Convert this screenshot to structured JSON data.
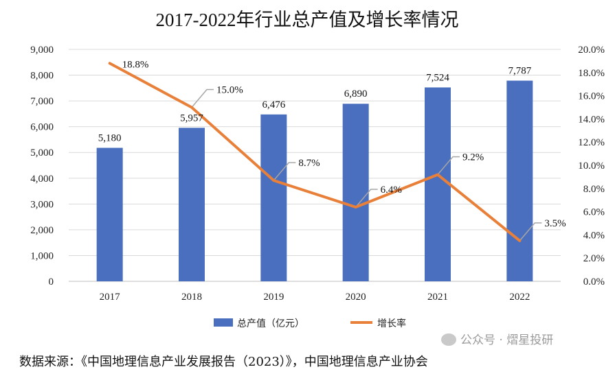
{
  "chart_data": {
    "type": "bar",
    "title": "2017-2022年行业总产值及增长率情况",
    "categories": [
      "2017",
      "2018",
      "2019",
      "2020",
      "2021",
      "2022"
    ],
    "series": [
      {
        "name": "总产值（亿元）",
        "type": "bar",
        "axis": "left",
        "color": "#4a6fbe",
        "values": [
          5180,
          5957,
          6476,
          6890,
          7524,
          7787
        ],
        "labels": [
          "5,180",
          "5,957",
          "6,476",
          "6,890",
          "7,524",
          "7,787"
        ]
      },
      {
        "name": "增长率",
        "type": "line",
        "axis": "right",
        "color": "#e8803a",
        "values": [
          18.8,
          15.0,
          8.7,
          6.4,
          9.2,
          3.5
        ],
        "labels": [
          "18.8%",
          "15.0%",
          "8.7%",
          "6.4%",
          "9.2%",
          "3.5%"
        ]
      }
    ],
    "y_left": {
      "min": 0,
      "max": 9000,
      "ticks": [
        "0",
        "1,000",
        "2,000",
        "3,000",
        "4,000",
        "5,000",
        "6,000",
        "7,000",
        "8,000",
        "9,000"
      ]
    },
    "y_right": {
      "min": 0,
      "max": 20,
      "ticks": [
        "0.0%",
        "2.0%",
        "4.0%",
        "6.0%",
        "8.0%",
        "10.0%",
        "12.0%",
        "14.0%",
        "16.0%",
        "18.0%",
        "20.0%"
      ]
    },
    "grid": true,
    "legend": "bottom"
  },
  "footer": {
    "source": "数据来源：《中国地理信息产业发展报告（2023）》，中国地理信息产业协会",
    "watermark": "公众号 · 熠星投研"
  }
}
